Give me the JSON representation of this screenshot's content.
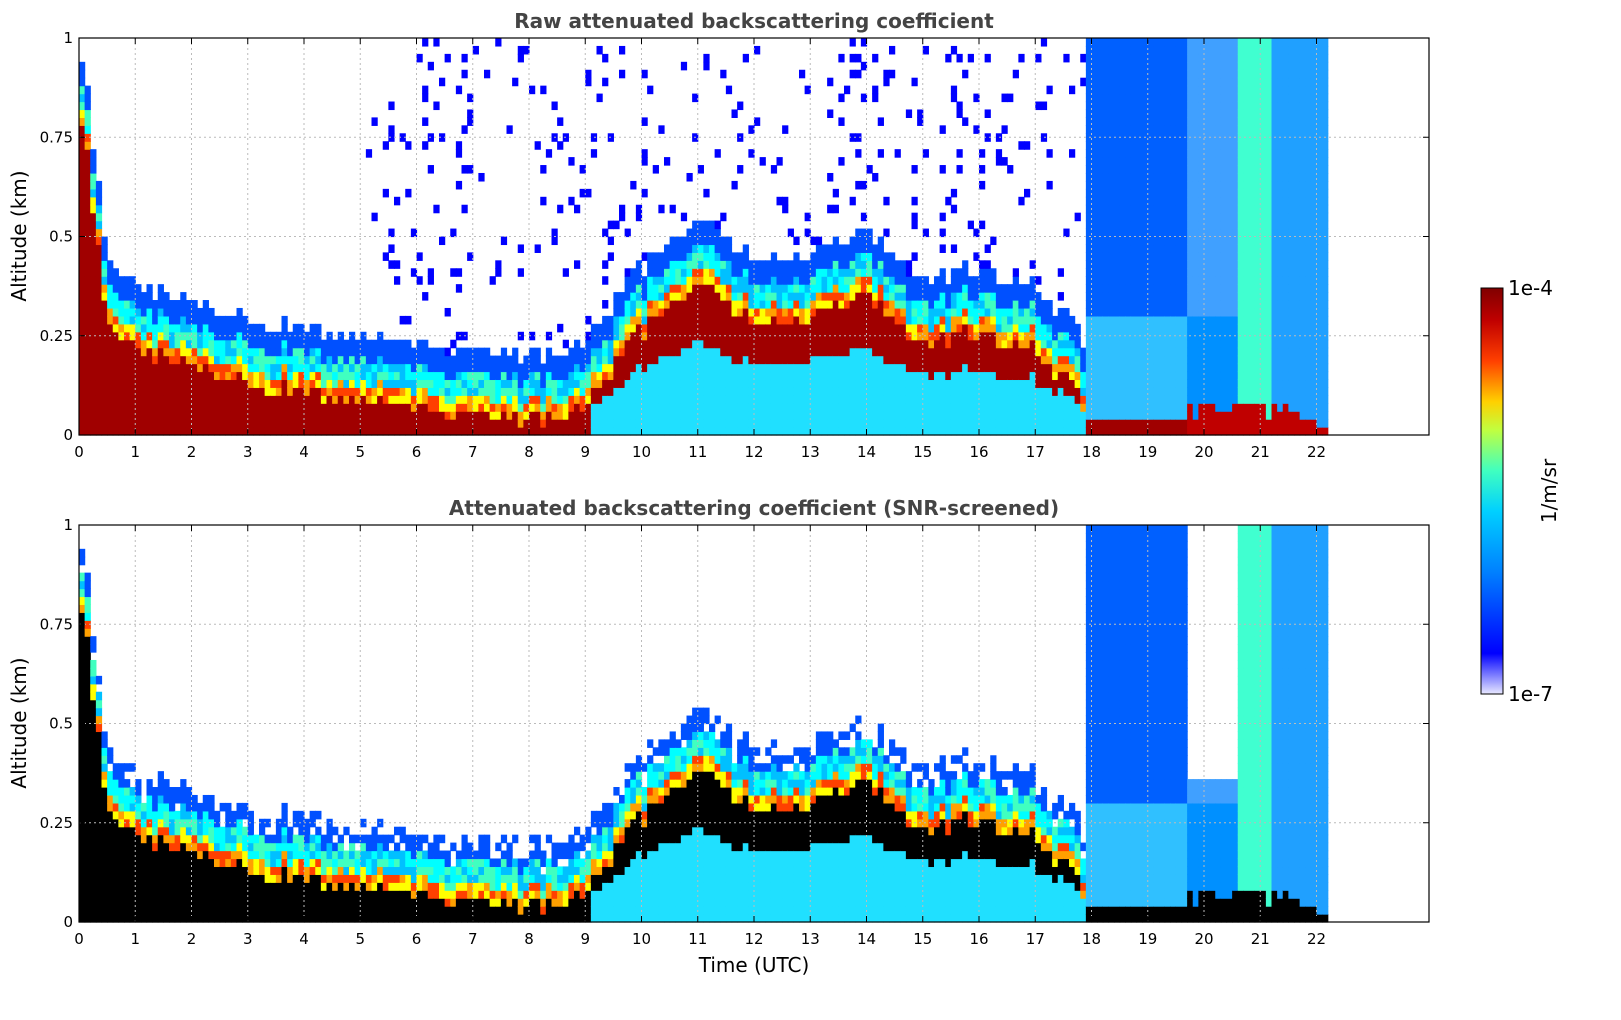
{
  "chart_data": [
    {
      "type": "heatmap",
      "title": "Raw attenuated backscattering coefficient",
      "xlabel": "",
      "ylabel": "Altitude (km)",
      "xlim": [
        0,
        24
      ],
      "ylim": [
        0,
        1
      ],
      "xticks": [
        "0",
        "1",
        "2",
        "3",
        "4",
        "5",
        "6",
        "7",
        "8",
        "9",
        "10",
        "11",
        "12",
        "13",
        "14",
        "15",
        "16",
        "17",
        "18",
        "19",
        "20",
        "21",
        "22"
      ],
      "yticks": [
        "0",
        "0.25",
        "0.5",
        "0.75",
        "1"
      ],
      "grid": true,
      "data_end_hour": 22.2,
      "boundary_layer_top_km": [
        {
          "t": 0.0,
          "h": 0.9
        },
        {
          "t": 0.5,
          "h": 0.35
        },
        {
          "t": 1,
          "h": 0.25
        },
        {
          "t": 2,
          "h": 0.22
        },
        {
          "t": 3,
          "h": 0.17
        },
        {
          "t": 4,
          "h": 0.15
        },
        {
          "t": 5,
          "h": 0.12
        },
        {
          "t": 6,
          "h": 0.1
        },
        {
          "t": 7,
          "h": 0.09
        },
        {
          "t": 8,
          "h": 0.09
        },
        {
          "t": 9,
          "h": 0.1
        },
        {
          "t": 10,
          "h": 0.3
        },
        {
          "t": 11,
          "h": 0.42
        },
        {
          "t": 12,
          "h": 0.32
        },
        {
          "t": 13,
          "h": 0.35
        },
        {
          "t": 14,
          "h": 0.38
        },
        {
          "t": 15,
          "h": 0.28
        },
        {
          "t": 16,
          "h": 0.3
        },
        {
          "t": 17,
          "h": 0.25
        },
        {
          "t": 17.8,
          "h": 0.15
        },
        {
          "t": 18,
          "h": 0.02
        },
        {
          "t": 19,
          "h": 0.02
        },
        {
          "t": 19.7,
          "h": 0.07
        },
        {
          "t": 21,
          "h": 0.06
        },
        {
          "t": 22.2,
          "h": 0.04
        }
      ]
    },
    {
      "type": "heatmap",
      "title": "Attenuated backscattering coefficient (SNR-screened)",
      "xlabel": "Time (UTC)",
      "ylabel": "Altitude (km)",
      "xlim": [
        0,
        24
      ],
      "ylim": [
        0,
        1
      ],
      "xticks": [
        "0",
        "1",
        "2",
        "3",
        "4",
        "5",
        "6",
        "7",
        "8",
        "9",
        "10",
        "11",
        "12",
        "13",
        "14",
        "15",
        "16",
        "17",
        "18",
        "19",
        "20",
        "21",
        "22"
      ],
      "yticks": [
        "0",
        "0.25",
        "0.5",
        "0.75",
        "1"
      ],
      "grid": true,
      "data_end_hour": 22.2
    }
  ],
  "colorbar": {
    "min_label": "1e-7",
    "max_label": "1e-4",
    "unit_label": "1/m/sr",
    "colors": [
      "#e8e8ff",
      "#0000ff",
      "#0080ff",
      "#00d0ff",
      "#40ffc0",
      "#c0ff40",
      "#ffd000",
      "#ff4000",
      "#c00000",
      "#800000"
    ]
  }
}
